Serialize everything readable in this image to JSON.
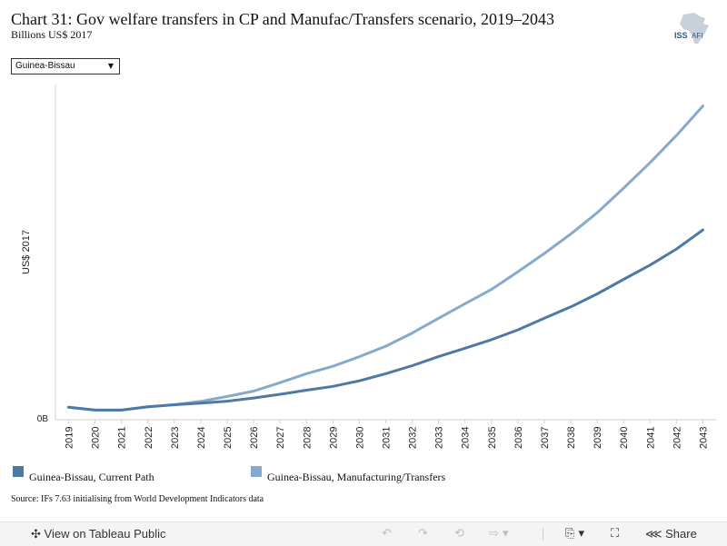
{
  "title": "Chart 31: Gov welfare transfers in CP and Manufac/Transfers scenario, 2019–2043",
  "subtitle": "Billions US$ 2017",
  "logo_text": "ISS",
  "logo_text2": "AFI",
  "dropdown": {
    "selected": "Guinea-Bissau"
  },
  "source": "Source: IFs 7.63 initialising from World Development Indicators data",
  "toolbar": {
    "view_label": "View on Tableau Public",
    "share_label": "Share"
  },
  "colors": {
    "current_path": "#4e79a7",
    "manufacturing": "#86a9cd"
  },
  "chart_data": {
    "type": "line",
    "ylabel": "US$ 2017",
    "ytick_label": "0B",
    "x": [
      "2019",
      "2020",
      "2021",
      "2022",
      "2023",
      "2024",
      "2025",
      "2026",
      "2027",
      "2028",
      "2029",
      "2030",
      "2031",
      "2032",
      "2033",
      "2034",
      "2035",
      "2036",
      "2037",
      "2038",
      "2039",
      "2040",
      "2041",
      "2042",
      "2043"
    ],
    "series": [
      {
        "name": "Guinea-Bissau, Current Path",
        "color": "#4e79a7",
        "values": [
          5.6,
          4.3,
          4.3,
          5.8,
          6.7,
          7.4,
          8.3,
          9.7,
          11.4,
          13.2,
          14.9,
          17.4,
          20.6,
          24.2,
          28.3,
          32.0,
          35.8,
          40.2,
          45.4,
          50.5,
          56.3,
          62.8,
          69.2,
          76.4,
          84.9
        ]
      },
      {
        "name": "Guinea-Bissau, Manufacturing/Transfers",
        "color": "#86a9cd",
        "values": [
          5.6,
          4.3,
          4.3,
          5.8,
          6.7,
          8.2,
          10.4,
          12.8,
          16.6,
          20.6,
          23.9,
          28.2,
          32.9,
          38.8,
          45.4,
          51.9,
          58.3,
          66.2,
          74.4,
          83.1,
          92.6,
          103.6,
          115.0,
          127.2,
          140.4
        ]
      }
    ],
    "ylim": [
      0,
      150
    ],
    "grid": false,
    "legend_position": "bottom"
  }
}
